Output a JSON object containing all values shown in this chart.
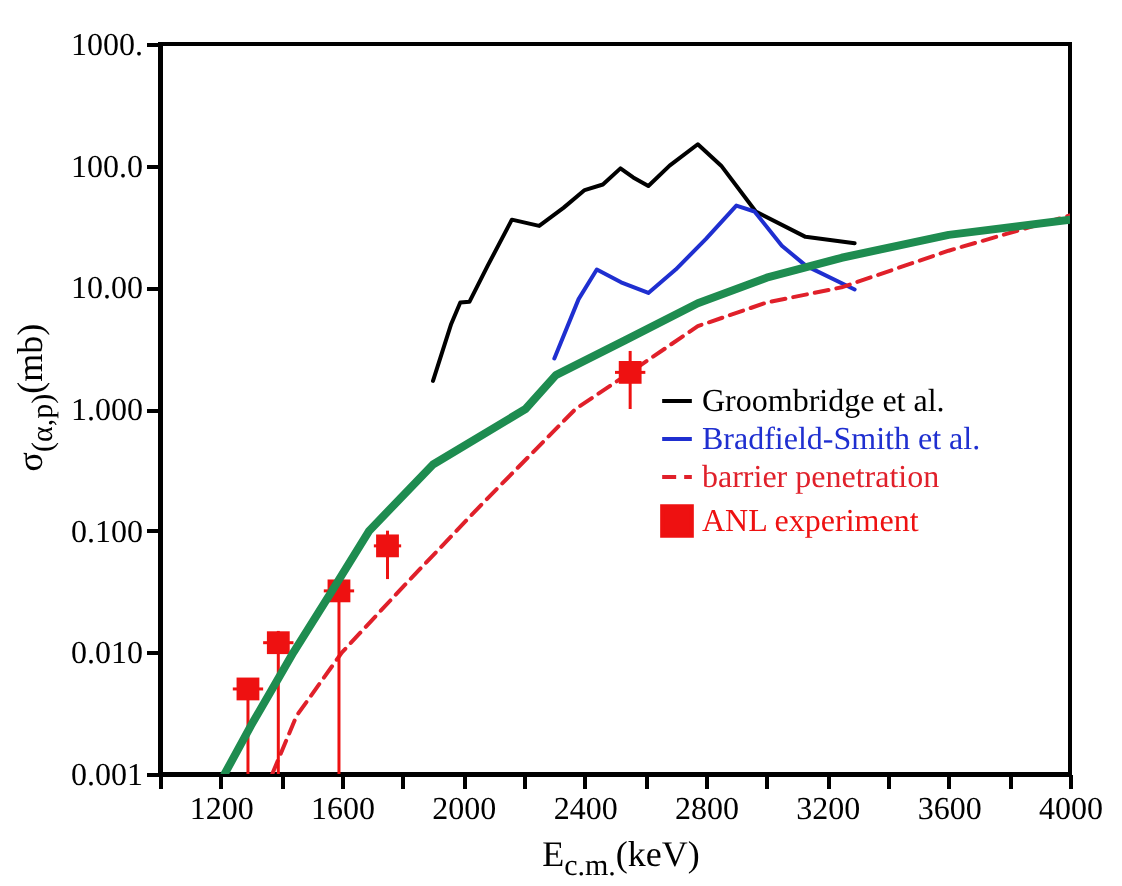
{
  "chart_data": {
    "type": "line",
    "xlabel": "E$_{c.m.}$(keV)",
    "ylabel": "σ$_{(α,p)}$(mb)",
    "log": "y",
    "grid": false,
    "legend": "right",
    "xlim": [
      1000,
      4000
    ],
    "xticks": [
      {
        "value": 1000,
        "label": null
      },
      1200,
      {
        "value": 1400,
        "label": null
      },
      1600,
      {
        "value": 1800,
        "label": null
      },
      2000,
      {
        "value": 2200,
        "label": null
      },
      2400,
      {
        "value": 2600,
        "label": null
      },
      2800,
      {
        "value": 3000,
        "label": null
      },
      3200,
      {
        "value": 3400,
        "label": null
      },
      3600,
      {
        "value": 3800,
        "label": null
      },
      4000
    ],
    "ylim": [
      0.001,
      1000
    ],
    "yticks": [
      {
        "value": 0.001,
        "label": "0.001"
      },
      {
        "value": 0.01,
        "label": "0.010"
      },
      {
        "value": 0.1,
        "label": "0.100"
      },
      {
        "value": 1,
        "label": "1.000"
      },
      {
        "value": 10,
        "label": "10.00"
      },
      {
        "value": 100,
        "label": "100.0"
      },
      {
        "value": 1000,
        "label": "1000."
      }
    ],
    "series": [
      {
        "name": "Groombridge et al.",
        "color": "#000000",
        "type": "line",
        "line_style": "solid",
        "x": [
          1900,
          1960,
          1990,
          2020,
          2080,
          2160,
          2250,
          2330,
          2400,
          2460,
          2518,
          2560,
          2610,
          2680,
          2773,
          2850,
          2964,
          3128,
          3290
        ],
        "values": [
          1.7,
          5,
          7.5,
          7.6,
          15,
          36,
          32,
          45,
          63,
          70,
          95,
          80,
          68,
          100,
          150,
          100,
          42,
          26,
          23
        ]
      },
      {
        "name": "Bradfield-Smith et al.",
        "color": "#1f2fd0",
        "type": "line",
        "line_style": "solid",
        "x": [
          2300,
          2380,
          2440,
          2520,
          2610,
          2700,
          2800,
          2900,
          2960,
          3050,
          3130,
          3290
        ],
        "values": [
          2.6,
          8,
          14,
          11,
          9,
          14,
          25,
          47,
          42,
          22,
          15,
          9.6
        ]
      },
      {
        "name": "barrier penetration",
        "color": "#e0202a",
        "type": "line",
        "line_style": "dashed",
        "x": [
          1370,
          1450,
          1600,
          1808,
          2066,
          2370,
          2550,
          2773,
          3000,
          3247,
          3600,
          4000
        ],
        "values": [
          0.001,
          0.003,
          0.01,
          0.036,
          0.17,
          1.0,
          2.0,
          4.8,
          7.5,
          10,
          20,
          39
        ]
      },
      {
        "name": "ANL experiment",
        "color": "#ee1111",
        "type": "scatter",
        "marker": "square",
        "x": [
          1290,
          1390,
          1590,
          1750,
          2550
        ],
        "values": [
          0.005,
          0.012,
          0.032,
          0.075,
          2.0
        ],
        "errors": [
          [
            0.001,
            0.006
          ],
          [
            0.001,
            0.015
          ],
          [
            0.001,
            0.04
          ],
          [
            0.04,
            0.1
          ],
          [
            1.0,
            3.0
          ]
        ],
        "xerrors": [
          50,
          50,
          50,
          45,
          50
        ]
      },
      {
        "color": "#1e8c50",
        "type": "line",
        "line_style": "solid",
        "x": [
          1213,
          1300,
          1370,
          1440,
          1560,
          1690,
          1900,
          2205,
          2305,
          2536,
          2773,
          3000,
          3247,
          3600,
          4000
        ],
        "values": [
          0.001,
          0.0025,
          0.005,
          0.01,
          0.03,
          0.1,
          0.35,
          1,
          1.9,
          3.7,
          7.4,
          12,
          17.5,
          27,
          36
        ]
      }
    ]
  }
}
